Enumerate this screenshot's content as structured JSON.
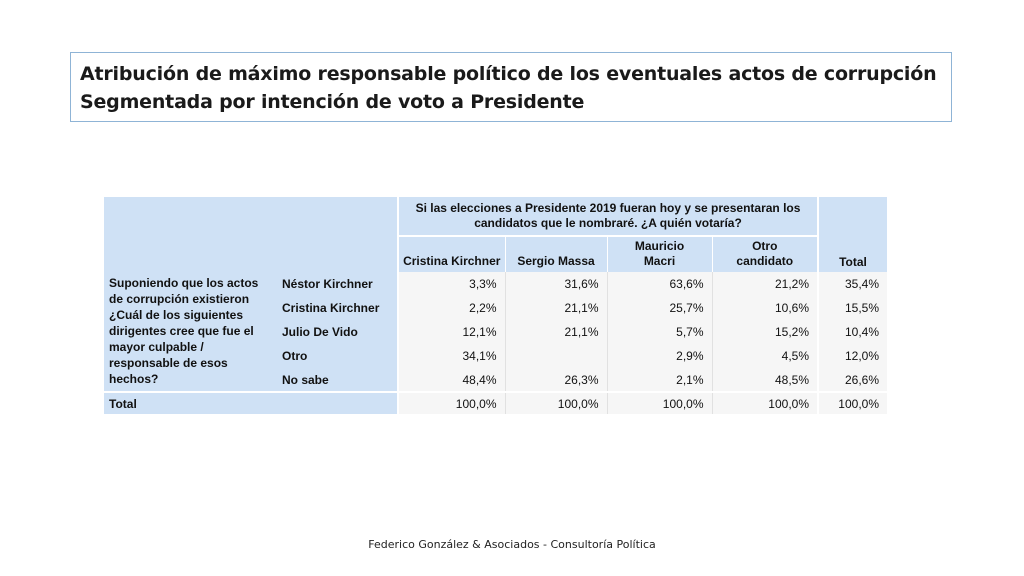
{
  "title": {
    "line1": "Atribución de máximo responsable político de los eventuales actos de corrupción",
    "line2": "Segmentada por intención de voto a Presidente"
  },
  "table": {
    "header_question": "Si las elecciones a Presidente 2019 fueran hoy y se presentaran los candidatos que le nombraré. ¿A quién votaría?",
    "columns": [
      "Cristina Kirchner",
      "Sergio Massa",
      "Mauricio Macri",
      "Otro candidato"
    ],
    "total_label": "Total",
    "row_question": "Suponiendo que los actos de corrupción existieron ¿Cuál de los siguientes dirigentes cree que fue el mayor culpable / responsable de esos hechos?",
    "rows": [
      {
        "label": "Néstor Kirchner",
        "values": [
          "3,3%",
          "31,6%",
          "63,6%",
          "21,2%",
          "35,4%"
        ]
      },
      {
        "label": "Cristina Kirchner",
        "values": [
          "2,2%",
          "21,1%",
          "25,7%",
          "10,6%",
          "15,5%"
        ]
      },
      {
        "label": "Julio De Vido",
        "values": [
          "12,1%",
          "21,1%",
          "5,7%",
          "15,2%",
          "10,4%"
        ]
      },
      {
        "label": "Otro",
        "values": [
          "34,1%",
          "",
          "2,9%",
          "4,5%",
          "12,0%"
        ]
      },
      {
        "label": "No sabe",
        "values": [
          "48,4%",
          "26,3%",
          "2,1%",
          "48,5%",
          "26,6%"
        ]
      }
    ],
    "totals": [
      "100,0%",
      "100,0%",
      "100,0%",
      "100,0%",
      "100,0%"
    ]
  },
  "footer": "Federico González & Asociados - Consultoría Política"
}
